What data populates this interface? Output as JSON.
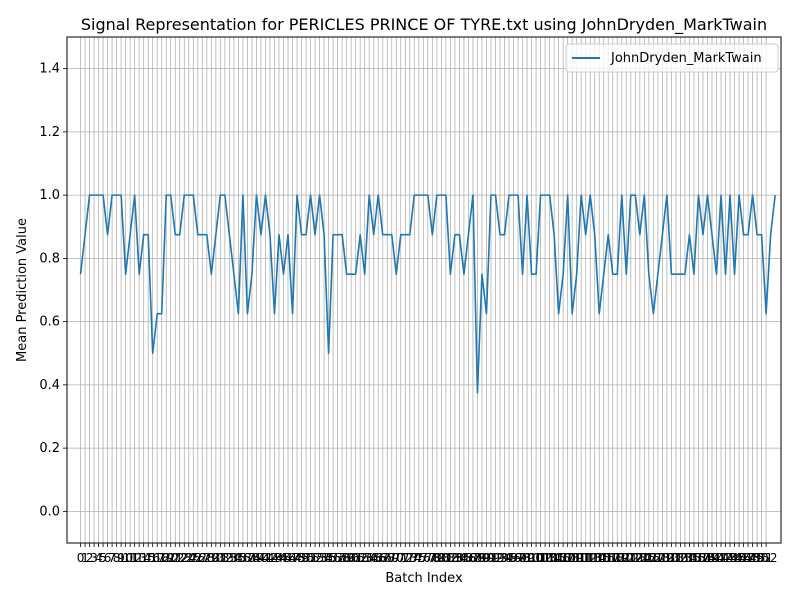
{
  "chart_data": {
    "type": "line",
    "title": "Signal Representation for PERICLES PRINCE OF TYRE.txt using JohnDryden_MarkTwain",
    "xlabel": "Batch Index",
    "ylabel": "Mean Prediction Value",
    "ylim": [
      -0.1,
      1.5
    ],
    "xlim": [
      -3.0,
      155.3
    ],
    "yticks": [
      "0.0",
      "0.2",
      "0.4",
      "0.6",
      "0.8",
      "1.0",
      "1.2",
      "1.4"
    ],
    "ytick_values": [
      0.0,
      0.2,
      0.4,
      0.6,
      0.8,
      1.0,
      1.2,
      1.4
    ],
    "xtick_start": 0,
    "xtick_end": 152,
    "grid": true,
    "legend_position": "upper right",
    "colors": {
      "line": "#1f77b4",
      "grid": "#b0b0b0",
      "axes": "#000000"
    },
    "series": [
      {
        "name": "JohnDryden_MarkTwain",
        "values": [
          0.75,
          0.875,
          1.0,
          1.0,
          1.0,
          1.0,
          0.875,
          1.0,
          1.0,
          1.0,
          0.75,
          0.875,
          1.0,
          0.75,
          0.875,
          0.875,
          0.5,
          0.625,
          0.625,
          1.0,
          1.0,
          0.875,
          0.875,
          1.0,
          1.0,
          1.0,
          0.875,
          0.875,
          0.875,
          0.75,
          0.875,
          1.0,
          1.0,
          0.875,
          0.75,
          0.625,
          1.0,
          0.625,
          0.75,
          1.0,
          0.875,
          1.0,
          0.875,
          0.625,
          0.875,
          0.75,
          0.875,
          0.625,
          1.0,
          0.875,
          0.875,
          1.0,
          0.875,
          1.0,
          0.875,
          0.5,
          0.875,
          0.875,
          0.875,
          0.75,
          0.75,
          0.75,
          0.875,
          0.75,
          1.0,
          0.875,
          1.0,
          0.875,
          0.875,
          0.875,
          0.75,
          0.875,
          0.875,
          0.875,
          1.0,
          1.0,
          1.0,
          1.0,
          0.875,
          1.0,
          1.0,
          1.0,
          0.75,
          0.875,
          0.875,
          0.75,
          0.875,
          1.0,
          0.375,
          0.75,
          0.625,
          1.0,
          1.0,
          0.875,
          0.875,
          1.0,
          1.0,
          1.0,
          0.75,
          1.0,
          0.75,
          0.75,
          1.0,
          1.0,
          1.0,
          0.875,
          0.625,
          0.75,
          1.0,
          0.625,
          0.75,
          1.0,
          0.875,
          1.0,
          0.875,
          0.625,
          0.75,
          0.875,
          0.75,
          0.75,
          1.0,
          0.75,
          1.0,
          1.0,
          0.875,
          1.0,
          0.75,
          0.625,
          0.75,
          0.875,
          1.0,
          0.75,
          0.75,
          0.75,
          0.75,
          0.875,
          0.75,
          1.0,
          0.875,
          1.0,
          0.875,
          0.75,
          1.0,
          0.75,
          1.0,
          0.75,
          1.0,
          0.875,
          0.875,
          1.0,
          0.875,
          0.875,
          0.625,
          0.875,
          1.0
        ]
      }
    ]
  }
}
